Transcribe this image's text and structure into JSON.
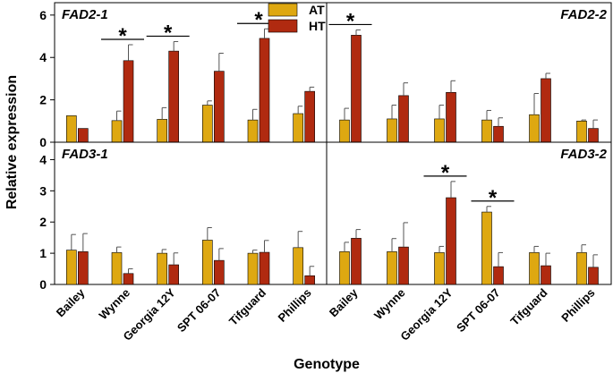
{
  "chart_data": {
    "type": "bar",
    "ylabel": "Relative expression",
    "xlabel": "Genotype",
    "categories": [
      "Bailey",
      "Wynne",
      "Georgia 12Y",
      "SPT 06-07",
      "Tifguard",
      "Phillips"
    ],
    "legend": [
      {
        "name": "AT",
        "color": "#dea811"
      },
      {
        "name": "HT",
        "color": "#b02a10"
      }
    ],
    "significance_marker": "*",
    "panels": [
      {
        "title": "FAD2-1",
        "ylim": [
          0,
          6.5
        ],
        "yticks": [
          0,
          2,
          4,
          6
        ],
        "series": [
          {
            "name": "AT",
            "values": [
              1.25,
              1.02,
              1.08,
              1.75,
              1.05,
              1.35
            ],
            "errors": [
              0,
              0.45,
              0.55,
              0.2,
              0.5,
              0.35
            ]
          },
          {
            "name": "HT",
            "values": [
              0.65,
              3.85,
              4.3,
              3.35,
              4.9,
              2.4
            ],
            "errors": [
              0,
              0.75,
              0.45,
              0.85,
              0.45,
              0.2
            ]
          }
        ],
        "significant": [
          1,
          2,
          4
        ]
      },
      {
        "title": "FAD2-2",
        "ylim": [
          0,
          6.5
        ],
        "yticks": [
          0,
          2,
          4,
          6
        ],
        "series": [
          {
            "name": "AT",
            "values": [
              1.05,
              1.1,
              1.1,
              1.05,
              1.3,
              1.0
            ],
            "errors": [
              0.55,
              0.65,
              0.65,
              0.45,
              1.0,
              0.05
            ]
          },
          {
            "name": "HT",
            "values": [
              5.05,
              2.2,
              2.35,
              0.75,
              3.0,
              0.65
            ],
            "errors": [
              0.25,
              0.6,
              0.55,
              0.4,
              0.25,
              0.4
            ]
          }
        ],
        "significant": [
          0
        ]
      },
      {
        "title": "FAD3-1",
        "ylim": [
          0,
          4.5
        ],
        "yticks": [
          0,
          1,
          2,
          3,
          4
        ],
        "series": [
          {
            "name": "AT",
            "values": [
              1.1,
              1.02,
              1.0,
              1.42,
              1.0,
              1.18
            ],
            "errors": [
              0.5,
              0.18,
              0.12,
              0.4,
              0.1,
              0.52
            ]
          },
          {
            "name": "HT",
            "values": [
              1.05,
              0.35,
              0.63,
              0.77,
              1.03,
              0.28
            ],
            "errors": [
              0.58,
              0.15,
              0.38,
              0.38,
              0.38,
              0.3
            ]
          }
        ],
        "significant": []
      },
      {
        "title": "FAD3-2",
        "ylim": [
          0,
          4.5
        ],
        "yticks": [
          0,
          1,
          2,
          3,
          4
        ],
        "series": [
          {
            "name": "AT",
            "values": [
              1.05,
              1.05,
              1.02,
              2.32,
              1.02,
              1.02
            ],
            "errors": [
              0.3,
              0.42,
              0.2,
              0.18,
              0.2,
              0.25
            ]
          },
          {
            "name": "HT",
            "values": [
              1.48,
              1.2,
              2.78,
              0.57,
              0.6,
              0.55
            ],
            "errors": [
              0.28,
              0.78,
              0.52,
              0.45,
              0.4,
              0.4
            ]
          }
        ],
        "significant": [
          2,
          3
        ]
      }
    ]
  }
}
